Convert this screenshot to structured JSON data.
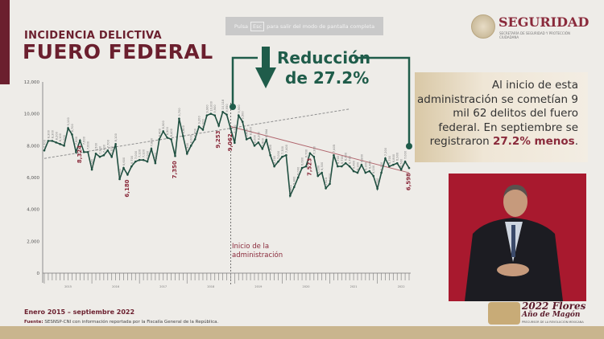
{
  "header": {
    "title_small": "INCIDENCIA DELICTIVA",
    "title_large": "FUERO FEDERAL"
  },
  "fullscreen_notice": {
    "pre": "Pulsa",
    "key": "Esc",
    "post": "para salir del modo de pantalla completa"
  },
  "brand": {
    "name": "SEGURIDAD",
    "subtitle": "SECRETARÍA DE SEGURIDAD Y PROTECCIÓN CIUDADANA"
  },
  "callout": {
    "line1": "Reducción",
    "line2": "de 27.2%"
  },
  "info_box": {
    "text_a": "Al inicio de esta administración se cometían 9 mil 62 delitos del fuero federal. En septiembre se registraron ",
    "highlight": "27.2% menos",
    "text_b": "."
  },
  "annotation": {
    "admin_start": "Inicio de la administración"
  },
  "footer": {
    "period": "Enero 2015 – septiembre 2022",
    "source_label": "Fuente:",
    "source": "SESNSP-CNI con información reportada por la Fiscalía General de la República."
  },
  "campaign": {
    "line1": "2022 Flores",
    "line2": "Año de Magón",
    "sub": "PRECURSOR DE LA REVOLUCIÓN MEXICANA"
  },
  "colors": {
    "line": "#1f4f40",
    "accent": "#8a2a3b",
    "green": "#1f5c4a",
    "trend_pre": "#8f8f8f",
    "trend_post": "#b0646c"
  },
  "chart_data": {
    "type": "line",
    "title": "",
    "xlabel": "",
    "ylabel": "",
    "ylim": [
      0,
      12000
    ],
    "yticks": [
      "0",
      "2,000",
      "4,000",
      "6,000",
      "8,000",
      "10,000",
      "12,000"
    ],
    "x_start": "2015-01",
    "x_end": "2022-09",
    "year_labels": [
      "2015",
      "2016",
      "2017",
      "2018",
      "2019",
      "2020",
      "2021",
      "2022"
    ],
    "grid": false,
    "values": [
      7700,
      8300,
      8300,
      8200,
      8100,
      8000,
      9100,
      8700,
      7600,
      8324,
      7600,
      7600,
      6500,
      7500,
      7300,
      7400,
      7700,
      7300,
      8100,
      5900,
      6600,
      6180,
      6700,
      7000,
      7100,
      7100,
      7000,
      7800,
      6900,
      8400,
      8900,
      8500,
      8400,
      7350,
      9700,
      8600,
      7500,
      8000,
      8400,
      9200,
      9000,
      9900,
      10000,
      9900,
      9253,
      10118,
      9950,
      9062,
      8180,
      9900,
      9500,
      8400,
      8500,
      8000,
      8200,
      7800,
      8364,
      7400,
      6700,
      7000,
      7300,
      7400,
      4861,
      5400,
      6000,
      6600,
      6700,
      7523,
      7300,
      6100,
      6300,
      5324,
      5600,
      7405,
      6700,
      6700,
      6900,
      6700,
      6400,
      6300,
      6800,
      6300,
      6400,
      6100,
      5300,
      6300,
      7200,
      6700,
      6800,
      6900,
      6500,
      7000,
      6598
    ],
    "highlighted_labels": [
      {
        "month": "2015-10",
        "label": "8,324"
      },
      {
        "month": "2016-10",
        "label": "6,180"
      },
      {
        "month": "2017-10",
        "label": "7,350"
      },
      {
        "month": "2018-09",
        "label": "9,253"
      },
      {
        "month": "2018-12",
        "label": "9,062"
      },
      {
        "month": "2020-08",
        "label": "7,523"
      },
      {
        "month": "2022-09",
        "label": "6,598"
      }
    ],
    "admin_start_month": "2018-12",
    "trend_pre": {
      "from": [
        "2015-01",
        7200
      ],
      "to": [
        "2021-06",
        10300
      ]
    },
    "trend_post": {
      "from": [
        "2018-12",
        9200
      ],
      "to": [
        "2022-09",
        6300
      ]
    }
  }
}
